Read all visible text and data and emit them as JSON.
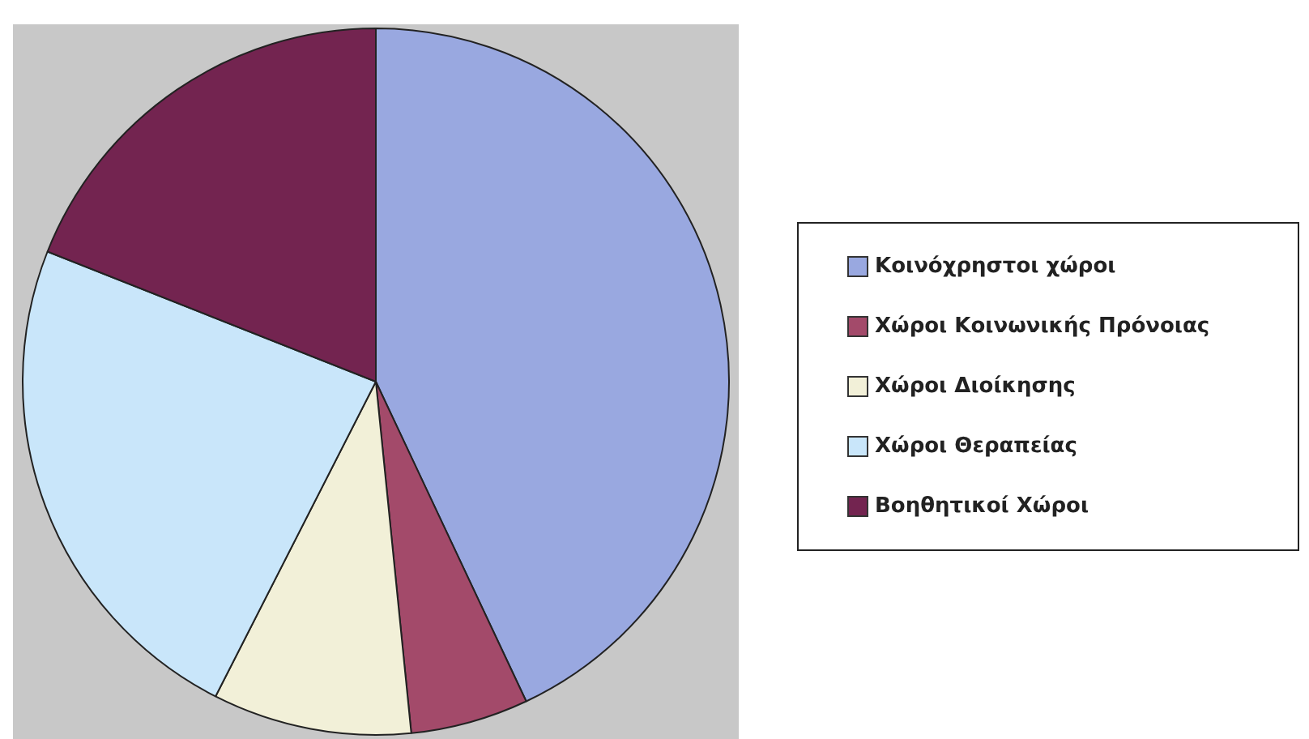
{
  "chart_data": {
    "type": "pie",
    "categories": [
      "Κοινόχρηστοι χώροι",
      "Χώροι Κοινωνικής Πρόνοιας",
      "Χώροι Διοίκησης",
      "Χώροι Θεραπείας",
      "Βοηθητικοί Χώροι"
    ],
    "values": [
      43,
      5.4,
      9.1,
      23.5,
      19
    ],
    "colors": [
      "#99a8e0",
      "#a34a6a",
      "#f2f0d8",
      "#c9e6fa",
      "#732450"
    ],
    "legend": "right"
  }
}
